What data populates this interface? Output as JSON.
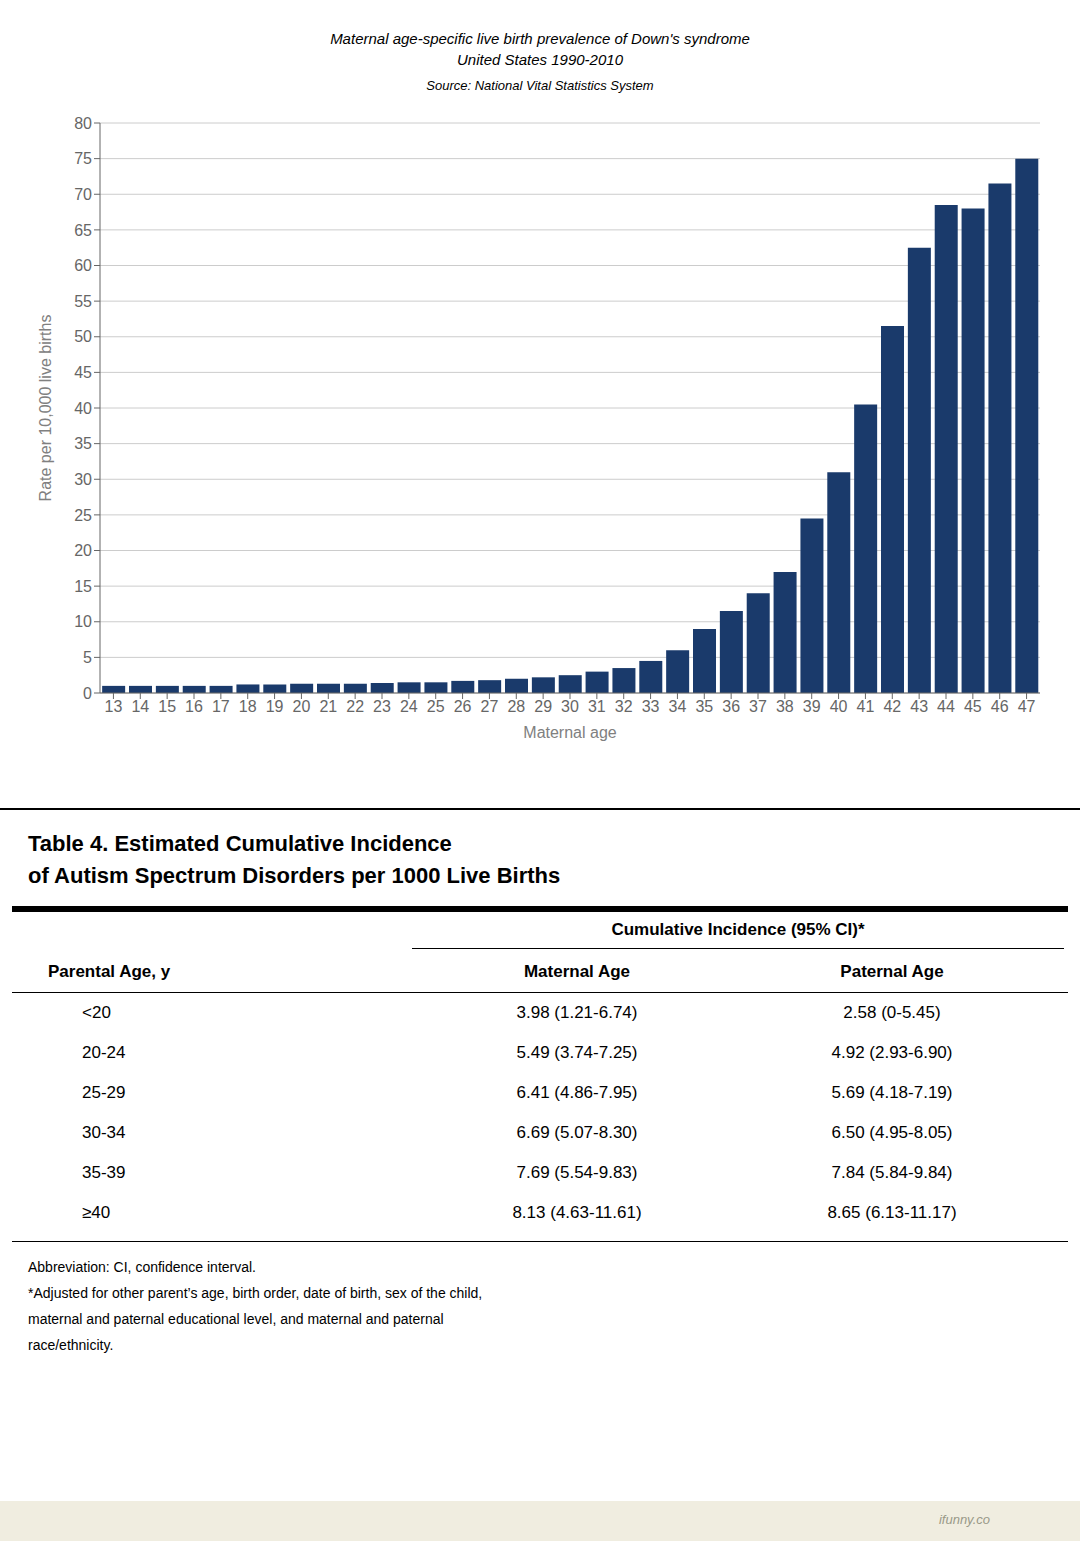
{
  "chart_data": {
    "type": "bar",
    "title": "Maternal age-specific live birth prevalence of Down's syndrome",
    "subtitle": "United States 1990-2010",
    "annotations": [
      "Source: National Vital Statistics System"
    ],
    "xlabel": "Maternal age",
    "ylabel": "Rate per 10,000 live births",
    "categories": [
      13,
      14,
      15,
      16,
      17,
      18,
      19,
      20,
      21,
      22,
      23,
      24,
      25,
      26,
      27,
      28,
      29,
      30,
      31,
      32,
      33,
      34,
      35,
      36,
      37,
      38,
      39,
      40,
      41,
      42,
      43,
      44,
      45,
      46,
      47
    ],
    "values": [
      1.0,
      1.0,
      1.0,
      1.0,
      1.0,
      1.2,
      1.2,
      1.3,
      1.3,
      1.3,
      1.4,
      1.5,
      1.5,
      1.7,
      1.8,
      2.0,
      2.2,
      2.5,
      3.0,
      3.5,
      4.5,
      6.0,
      9.0,
      11.5,
      14.0,
      17.0,
      24.5,
      31.0,
      40.5,
      51.5,
      62.5,
      68.5,
      68.0,
      71.5,
      75.0
    ],
    "color": "#1a3a6b",
    "ylim": [
      0,
      80
    ],
    "yticks": [
      0,
      5,
      10,
      15,
      20,
      25,
      30,
      35,
      40,
      45,
      50,
      55,
      60,
      65,
      70,
      75,
      80
    ],
    "grid": true
  },
  "table": {
    "title": [
      "Table 4. Estimated Cumulative Incidence",
      "of Autism Spectrum Disorders per 1000 Live Births"
    ],
    "group_header": "Cumulative Incidence (95% CI)*",
    "columns": [
      "Parental Age, y",
      "Maternal Age",
      "Paternal Age"
    ],
    "rows": [
      [
        "<20",
        "3.98 (1.21-6.74)",
        "2.58 (0-5.45)"
      ],
      [
        "20-24",
        "5.49 (3.74-7.25)",
        "4.92 (2.93-6.90)"
      ],
      [
        "25-29",
        "6.41 (4.86-7.95)",
        "5.69 (4.18-7.19)"
      ],
      [
        "30-34",
        "6.69 (5.07-8.30)",
        "6.50 (4.95-8.05)"
      ],
      [
        "35-39",
        "7.69 (5.54-9.83)",
        "7.84 (5.84-9.84)"
      ],
      [
        "≥40",
        "8.13 (4.63-11.61)",
        "8.65 (6.13-11.17)"
      ]
    ],
    "footnotes": [
      "Abbreviation: CI, confidence interval.",
      "*Adjusted for other parent’s age, birth order, date of birth, sex of the child,",
      "maternal and paternal educational level, and maternal and paternal",
      "race/ethnicity."
    ]
  },
  "watermark": "ifunny.co"
}
